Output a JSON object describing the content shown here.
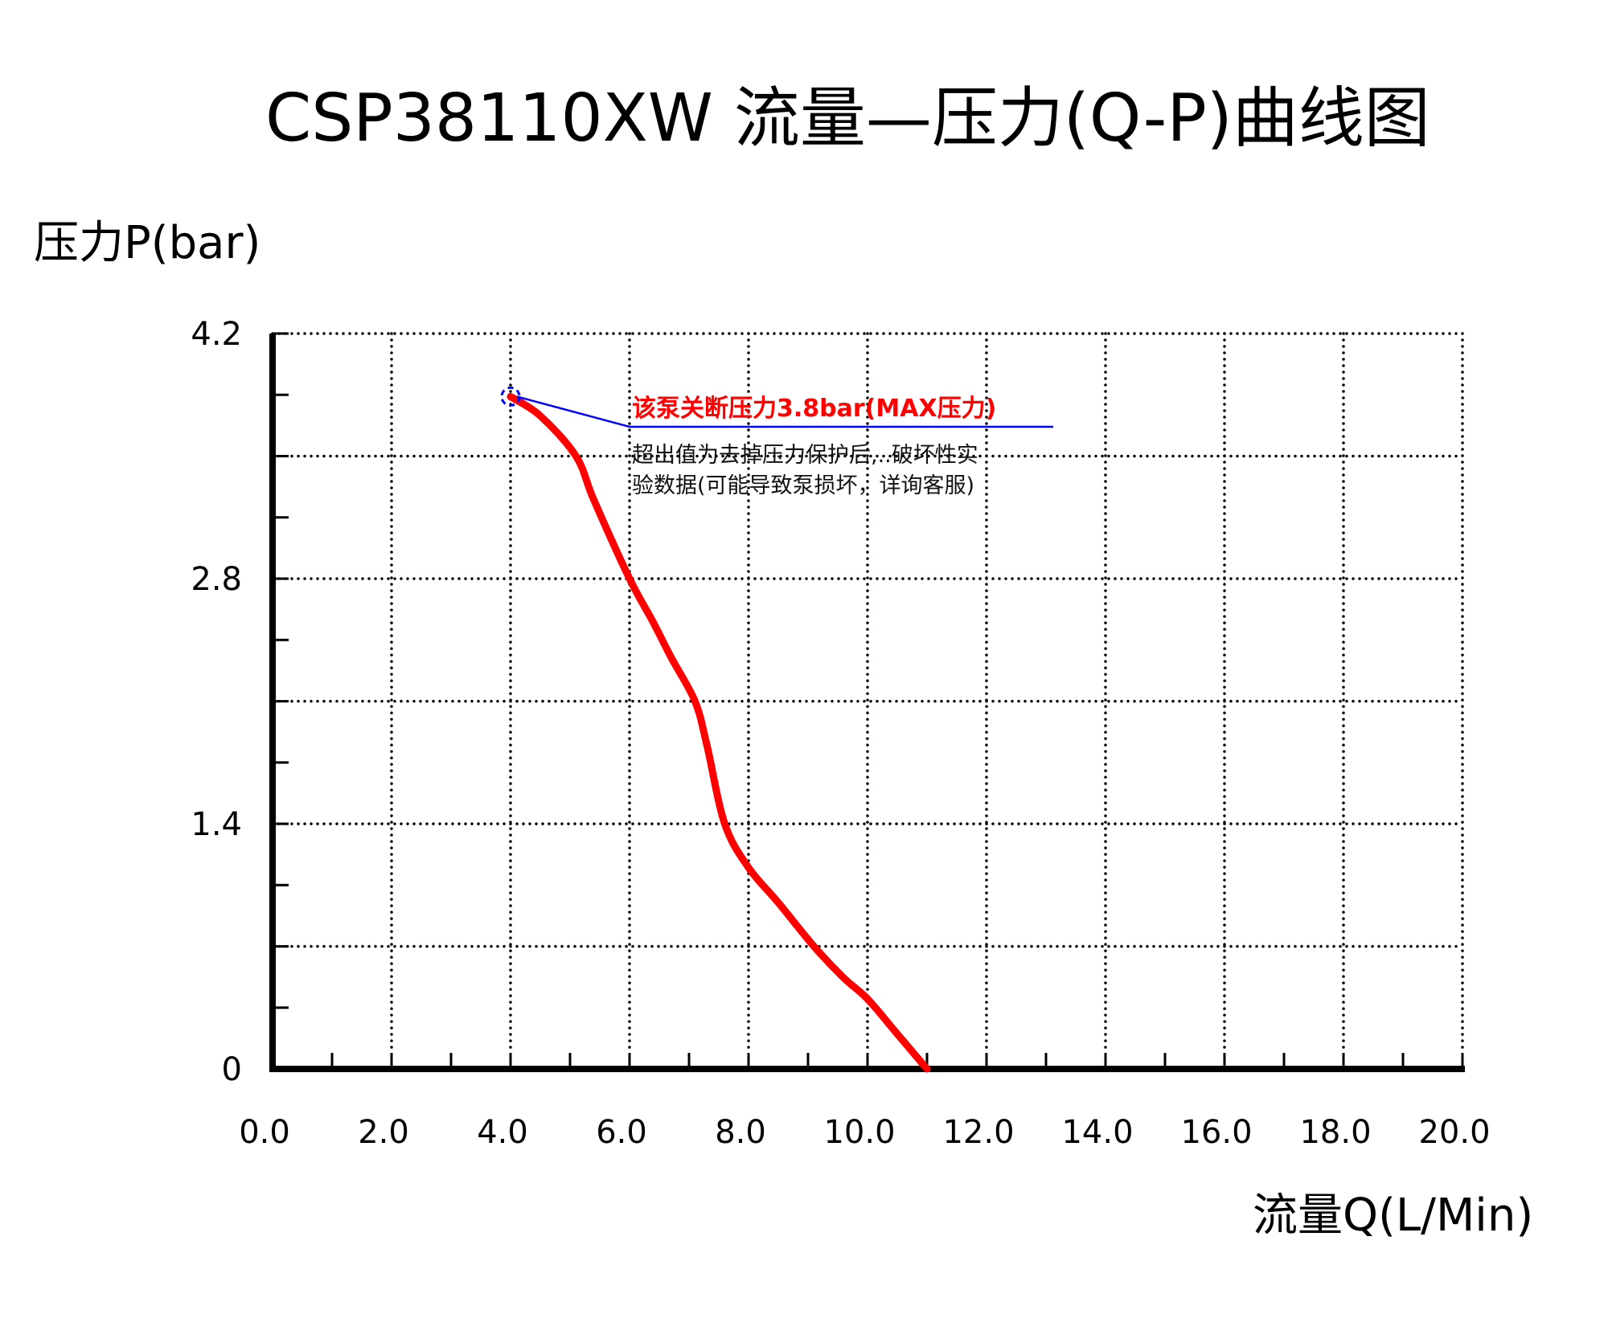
{
  "title": "CSP38110XW 流量—压力(Q-P)曲线图",
  "y_axis_label": "压力P(bar)",
  "x_axis_label": "流量Q(L/Min)",
  "annotation": {
    "headline": "该泵关断压力3.8bar(MAX压力)",
    "line1": "超出值为去掉压力保护后,..破坏性实",
    "line2": "验数据(可能导致泵损坏，详询客服)",
    "headline_color": "#ff0000",
    "leader_color": "#0000ff"
  },
  "colors": {
    "curve": "#ff0000",
    "axis": "#000000",
    "grid": "#000000",
    "leader": "#0000ff"
  },
  "chart_data": {
    "type": "line",
    "title": "CSP38110XW 流量—压力(Q-P)曲线图",
    "xlabel": "流量Q(L/Min)",
    "ylabel": "压力P(bar)",
    "xlim": [
      0,
      20
    ],
    "ylim": [
      0,
      4.2
    ],
    "x_ticks": [
      "0.0",
      "2.0",
      "4.0",
      "6.0",
      "8.0",
      "10.0",
      "12.0",
      "14.0",
      "16.0",
      "18.0",
      "20.0"
    ],
    "y_ticks": [
      "0",
      "1.4",
      "2.8",
      "4.2"
    ],
    "grid": true,
    "grid_style": "dotted",
    "legend": null,
    "series": [
      {
        "name": "Q-P curve",
        "color": "#ff0000",
        "x": [
          4.0,
          4.5,
          5.1,
          5.4,
          6.0,
          6.4,
          6.7,
          7.1,
          7.3,
          7.6,
          8.0,
          8.5,
          9.1,
          9.6,
          10.0,
          10.5,
          11.0
        ],
        "y": [
          3.84,
          3.73,
          3.5,
          3.25,
          2.8,
          2.55,
          2.35,
          2.1,
          1.85,
          1.4,
          1.15,
          0.95,
          0.7,
          0.52,
          0.4,
          0.2,
          0.0
        ]
      }
    ],
    "annotations": [
      {
        "point": [
          4.0,
          3.84
        ],
        "marker": "dashed-circle",
        "text": "该泵关断压力3.8bar(MAX压力)",
        "subtext": "超出值为去掉压力保护后,..破坏性实验数据(可能导致泵损坏，详询客服)"
      }
    ]
  }
}
